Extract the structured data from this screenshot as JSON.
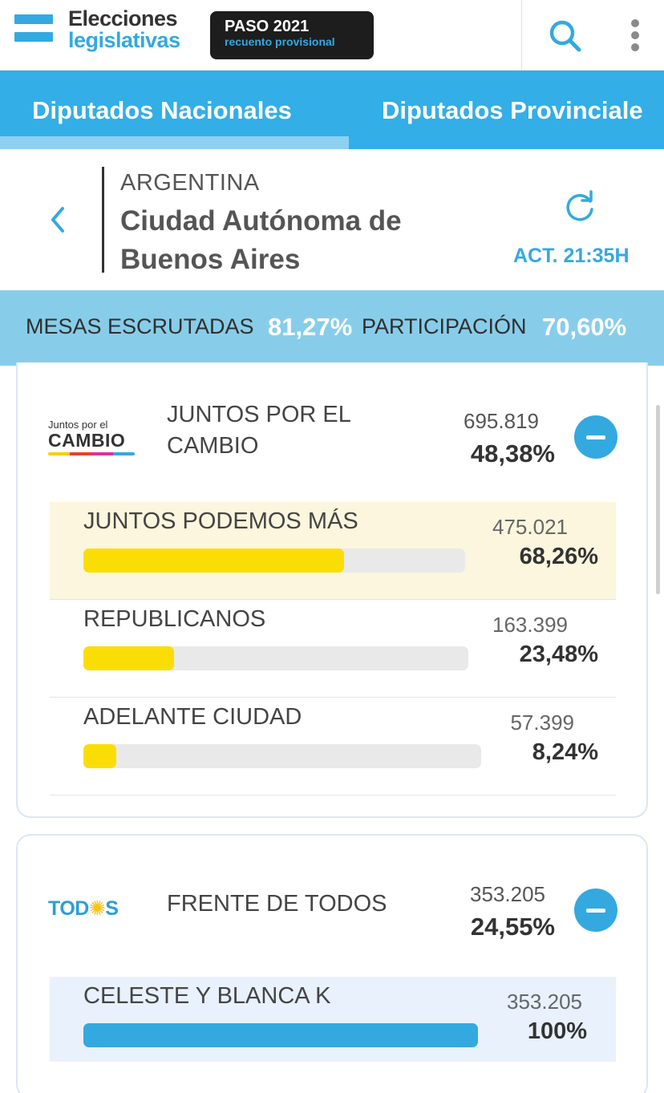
{
  "header": {
    "logo_line1": "Elecciones",
    "logo_line2": "legislativas",
    "badge_title": "PASO 2021",
    "badge_subtitle": "recuento provisional"
  },
  "tabs": [
    {
      "label": "Diputados Nacionales",
      "active": true
    },
    {
      "label": "Diputados Provinciale",
      "active": false
    }
  ],
  "location": {
    "country": "ARGENTINA",
    "name": "Ciudad Autónoma de Buenos Aires",
    "updated": "ACT. 21:35H"
  },
  "stats": {
    "mesas_label": "MESAS ESCRUTADAS",
    "mesas_value": "81,27%",
    "participacion_label": "PARTICIPACIÓN",
    "participacion_value": "70,60%"
  },
  "parties": [
    {
      "logo_text_small": "Juntos por el",
      "logo_text_big": "CAMBIO",
      "name": "JUNTOS POR EL CAMBIO",
      "votes": "695.819",
      "pct": "48,38%",
      "lists": [
        {
          "name": "JUNTOS PODEMOS MÁS",
          "votes": "475.021",
          "pct": "68,26%",
          "fraction": 0.6826
        },
        {
          "name": "REPUBLICANOS",
          "votes": "163.399",
          "pct": "23,48%",
          "fraction": 0.2348
        },
        {
          "name": "ADELANTE CIUDAD",
          "votes": "57.399",
          "pct": "8,24%",
          "fraction": 0.0824
        }
      ]
    },
    {
      "logo_text_a": "TOD",
      "logo_text_sun": "✺",
      "logo_text_b": "S",
      "name": "FRENTE DE TODOS",
      "votes": "353.205",
      "pct": "24,55%",
      "lists": [
        {
          "name": "CELESTE Y BLANCA K",
          "votes": "353.205",
          "pct": "100%",
          "fraction": 1.0
        }
      ]
    }
  ],
  "colors": {
    "accent": "#33a9e0",
    "stats_bg": "#87cdea",
    "bar_yellow": "#fbdd06",
    "highlight_yellow": "#fcf6de",
    "highlight_blue": "#e8f1fc"
  },
  "icons": {
    "search": "search-icon",
    "more": "more-vertical-icon",
    "back": "chevron-left-icon",
    "refresh": "refresh-icon",
    "collapse": "minus-circle-icon"
  }
}
